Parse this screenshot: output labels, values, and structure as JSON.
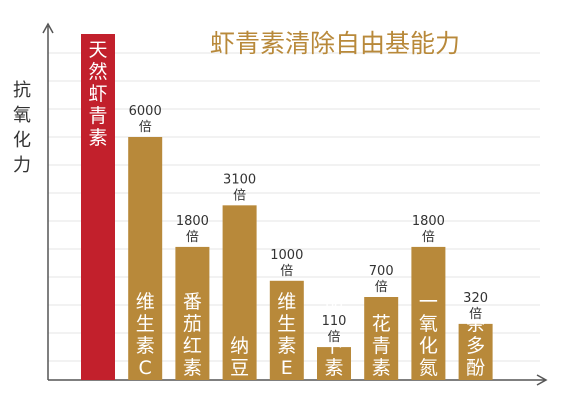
{
  "chart_data": {
    "type": "bar",
    "title": "虾青素清除自由基能力",
    "ylabel": "抗氧化力",
    "xlabel": "",
    "grid": true,
    "colors": {
      "title": "#b8893a",
      "highlight_bar": "#c2202c",
      "bar": "#b8893a",
      "axis": "#555555",
      "grid": "#e6e6e6"
    },
    "bars": [
      {
        "label": "天然虾青素",
        "value_text": "",
        "unit_text": "",
        "highlight": true
      },
      {
        "label": "维生素C",
        "value": 6000,
        "value_text": "6000",
        "unit_text": "倍"
      },
      {
        "label": "番茄红素",
        "value": 1800,
        "value_text": "1800",
        "unit_text": "倍"
      },
      {
        "label": "纳豆",
        "value": 3100,
        "value_text": "3100",
        "unit_text": "倍"
      },
      {
        "label": "维生素E",
        "value": 1000,
        "value_text": "1000",
        "unit_text": "倍"
      },
      {
        "label": "胡萝卜素",
        "value": 110,
        "value_text": "110",
        "unit_text": "倍"
      },
      {
        "label": "花青素",
        "value": 700,
        "value_text": "700",
        "unit_text": "倍"
      },
      {
        "label": "一氧化氮",
        "value": 1800,
        "value_text": "1800",
        "unit_text": "倍"
      },
      {
        "label": "茶多酚",
        "value": 320,
        "value_text": "320",
        "unit_text": "倍"
      }
    ]
  }
}
